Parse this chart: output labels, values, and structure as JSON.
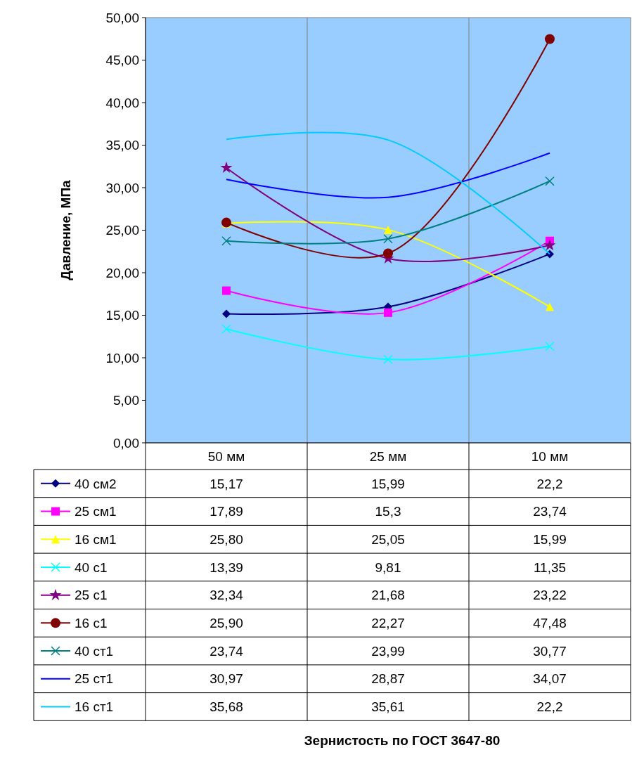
{
  "chart_data": {
    "type": "line",
    "annotations": [
      "Зернистость по ГОСТ 3647-80"
    ],
    "ylabel": "Давление, МПа",
    "categories": [
      "50 мм",
      "25 мм",
      "10 мм"
    ],
    "ylim": [
      0,
      50
    ],
    "yticks": [
      {
        "value": 0,
        "label": "0,00"
      },
      {
        "value": 5,
        "label": "5,00"
      },
      {
        "value": 10,
        "label": "10,00"
      },
      {
        "value": 15,
        "label": "15,00"
      },
      {
        "value": 20,
        "label": "20,00"
      },
      {
        "value": 25,
        "label": "25,00"
      },
      {
        "value": 30,
        "label": "30,00"
      },
      {
        "value": 35,
        "label": "35,00"
      },
      {
        "value": 40,
        "label": "40,00"
      },
      {
        "value": 45,
        "label": "45,00"
      },
      {
        "value": 50,
        "label": "50,00"
      }
    ],
    "grid": "x",
    "legend": "bottom",
    "series": [
      {
        "name": "40 см2",
        "color": "#000080",
        "marker": "diamond",
        "values": [
          15.17,
          15.99,
          22.2
        ],
        "value_labels": [
          "15,17",
          "15,99",
          "22,2"
        ]
      },
      {
        "name": "25 см1",
        "color": "#ff00ff",
        "marker": "square",
        "values": [
          17.89,
          15.3,
          23.74
        ],
        "value_labels": [
          "17,89",
          "15,3",
          "23,74"
        ]
      },
      {
        "name": "16 см1",
        "color": "#ffff00",
        "marker": "triangle",
        "values": [
          25.8,
          25.05,
          15.99
        ],
        "value_labels": [
          "25,80",
          "25,05",
          "15,99"
        ]
      },
      {
        "name": "40 с1",
        "color": "#00ffff",
        "marker": "cross",
        "values": [
          13.39,
          9.81,
          11.35
        ],
        "value_labels": [
          "13,39",
          "9,81",
          "11,35"
        ]
      },
      {
        "name": "25 с1",
        "color": "#800080",
        "marker": "star",
        "values": [
          32.34,
          21.68,
          23.22
        ],
        "value_labels": [
          "32,34",
          "21,68",
          "23,22"
        ]
      },
      {
        "name": "16 с1",
        "color": "#800000",
        "marker": "circle",
        "values": [
          25.9,
          22.27,
          47.48
        ],
        "value_labels": [
          "25,90",
          "22,27",
          "47,48"
        ]
      },
      {
        "name": "40 ст1",
        "color": "#008080",
        "marker": "cross",
        "values": [
          23.74,
          23.99,
          30.77
        ],
        "value_labels": [
          "23,74",
          "23,99",
          "30,77"
        ]
      },
      {
        "name": "25 ст1",
        "color": "#0000ff",
        "marker": "none",
        "values": [
          30.97,
          28.87,
          34.07
        ],
        "value_labels": [
          "30,97",
          "28,87",
          "34,07"
        ]
      },
      {
        "name": "16 ст1",
        "color": "#00ccff",
        "marker": "none",
        "values": [
          35.68,
          35.61,
          22.2
        ],
        "value_labels": [
          "35,68",
          "35,61",
          "22,2"
        ]
      }
    ]
  }
}
